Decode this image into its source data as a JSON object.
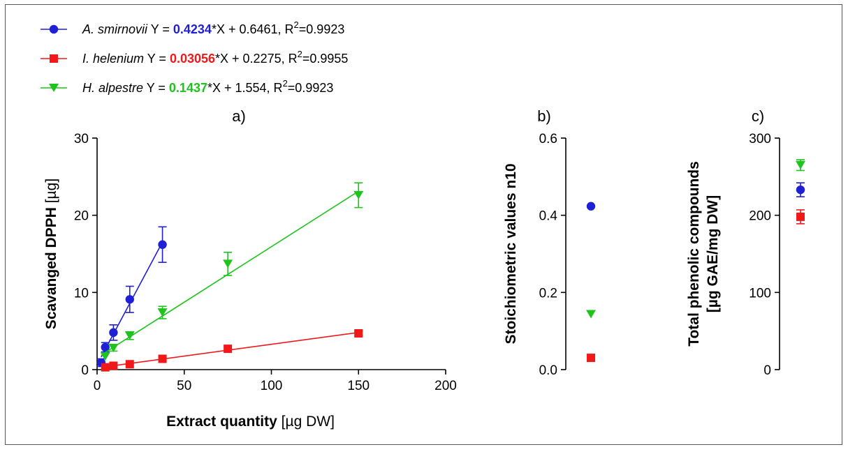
{
  "colors": {
    "smirnovii": "#1f1fd6",
    "helenium": "#f01818",
    "alpestre": "#1cc41c"
  },
  "legend": [
    {
      "species": "A. smirnovii",
      "pre": "Y = ",
      "slope": "0.4234",
      "mid": "*X + 0.6461, R",
      "sup": "2",
      "r2": "=0.9923",
      "color": "#1f1fd6",
      "marker": "circle"
    },
    {
      "species": "I. helenium",
      "pre": "Y = ",
      "slope": "0.03056",
      "mid": "*X + 0.2275, R",
      "sup": "2",
      "r2": "=0.9955",
      "color": "#f01818",
      "marker": "square"
    },
    {
      "species": "H. alpestre",
      "pre": "Y = ",
      "slope": "0.1437",
      "mid": "*X + 1.554, R",
      "sup": "2",
      "r2": "=0.9923",
      "color": "#1cc41c",
      "marker": "triangle-down"
    }
  ],
  "chart_data": [
    {
      "panel": "a)",
      "type": "scatter",
      "xlabel_bold": "Extract quantity",
      "xlabel_rest": " [µg DW]",
      "ylabel_bold": "Scavanged DPPH",
      "ylabel_rest": " [µg]",
      "xlim": [
        0,
        200
      ],
      "ylim": [
        0,
        30
      ],
      "xticks": [
        "0",
        "50",
        "100",
        "150",
        "200"
      ],
      "yticks": [
        "0",
        "10",
        "20",
        "30"
      ],
      "series": [
        {
          "name": "A. smirnovii",
          "marker": "circle",
          "color": "#1f1fd6",
          "x": [
            2.34,
            4.69,
            9.38,
            18.75,
            37.5
          ],
          "y": [
            0.9,
            2.9,
            4.8,
            9.1,
            16.2
          ],
          "err": [
            0.5,
            0.6,
            1.0,
            1.7,
            2.3
          ],
          "fit": {
            "slope": 0.4234,
            "intercept": 0.6461,
            "x0": 2.34,
            "x1": 37.5
          }
        },
        {
          "name": "I. helenium",
          "marker": "square",
          "color": "#f01818",
          "x": [
            4.69,
            9.38,
            18.75,
            37.5,
            75,
            150
          ],
          "y": [
            0.3,
            0.5,
            0.7,
            1.4,
            2.7,
            4.7
          ],
          "err": [
            0.1,
            0.1,
            0.1,
            0.2,
            0.2,
            0.3
          ],
          "fit": {
            "slope": 0.03056,
            "intercept": 0.2275,
            "x0": 4.69,
            "x1": 150
          }
        },
        {
          "name": "H. alpestre",
          "marker": "triangle-down",
          "color": "#1cc41c",
          "x": [
            4.69,
            9.38,
            18.75,
            37.5,
            75,
            150
          ],
          "y": [
            1.7,
            2.8,
            4.4,
            7.4,
            13.7,
            22.6
          ],
          "err": [
            0.2,
            0.4,
            0.5,
            0.8,
            1.5,
            1.6
          ],
          "fit": {
            "slope": 0.1437,
            "intercept": 1.554,
            "x0": 4.69,
            "x1": 150
          }
        }
      ]
    },
    {
      "panel": "b)",
      "type": "scatter",
      "ylabel": "Stoichiometric values n10",
      "ylim": [
        0,
        0.6
      ],
      "yticks": [
        "0.0",
        "0.2",
        "0.4",
        "0.6"
      ],
      "series": [
        {
          "name": "A. smirnovii",
          "marker": "circle",
          "color": "#1f1fd6",
          "y": 0.4234,
          "err": 0
        },
        {
          "name": "H. alpestre",
          "marker": "triangle-down",
          "color": "#1cc41c",
          "y": 0.1437,
          "err": 0
        },
        {
          "name": "I. helenium",
          "marker": "square",
          "color": "#f01818",
          "y": 0.03056,
          "err": 0
        }
      ]
    },
    {
      "panel": "c)",
      "type": "scatter",
      "ylabel_line1": "Total phenolic compounds",
      "ylabel_line2": "[µg GAE/mg DW]",
      "ylim": [
        0,
        300
      ],
      "yticks": [
        "0",
        "100",
        "200",
        "300"
      ],
      "series": [
        {
          "name": "H. alpestre",
          "marker": "triangle-down",
          "color": "#1cc41c",
          "y": 265,
          "err": 7
        },
        {
          "name": "A. smirnovii",
          "marker": "circle",
          "color": "#1f1fd6",
          "y": 233,
          "err": 9
        },
        {
          "name": "I. helenium",
          "marker": "square",
          "color": "#f01818",
          "y": 198,
          "err": 9
        }
      ]
    }
  ]
}
